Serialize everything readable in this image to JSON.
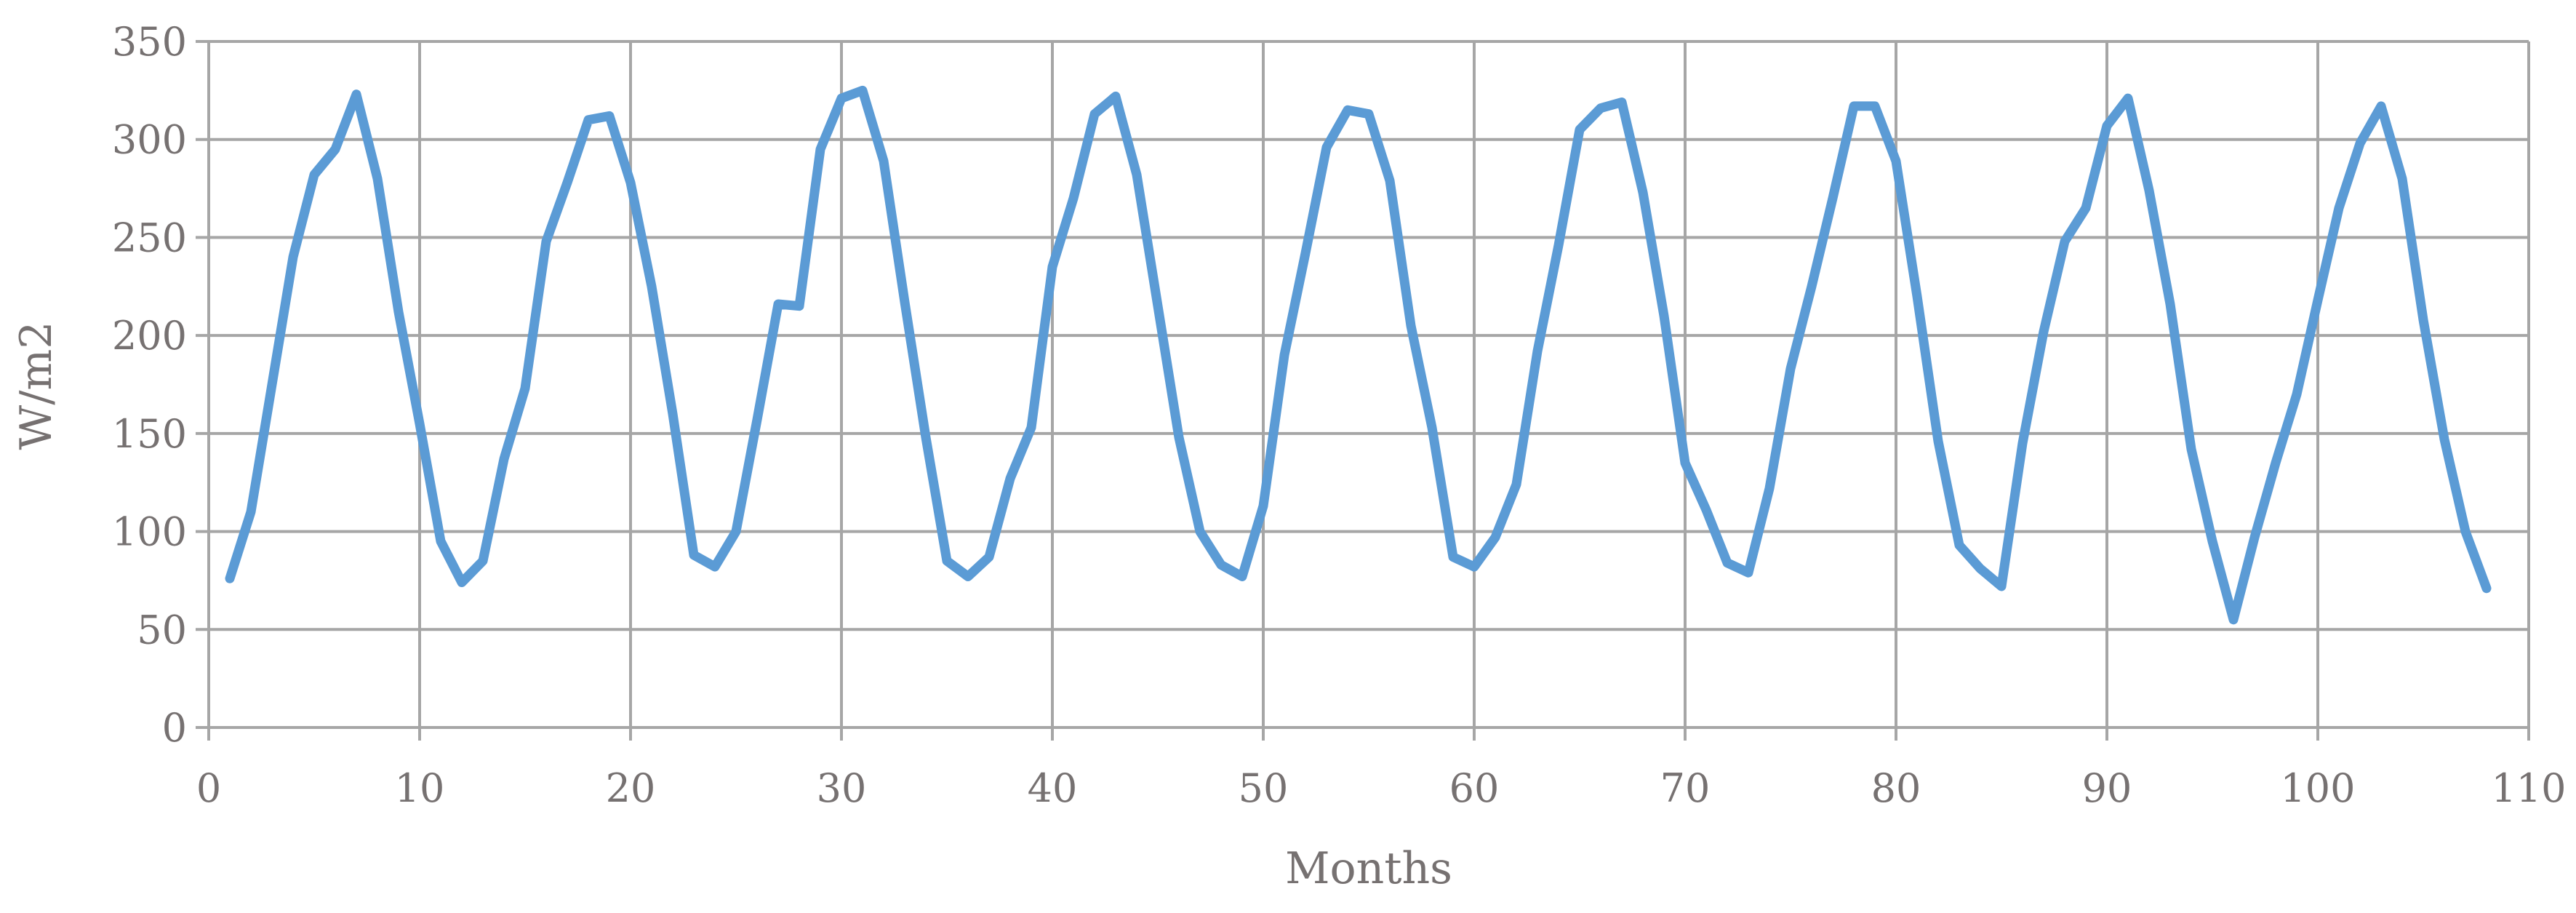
{
  "chart_data": {
    "type": "line",
    "title": "",
    "xlabel": "Months",
    "ylabel": "W/m2",
    "xlim": [
      0,
      110
    ],
    "ylim": [
      0,
      350
    ],
    "xticks": [
      0,
      10,
      20,
      30,
      40,
      50,
      60,
      70,
      80,
      90,
      100,
      110
    ],
    "yticks": [
      0,
      50,
      100,
      150,
      200,
      250,
      300,
      350
    ],
    "grid": true,
    "legend": "none",
    "series": [
      {
        "color": "#5b9bd5",
        "x": [
          1,
          2,
          3,
          4,
          5,
          6,
          7,
          8,
          9,
          10,
          11,
          12,
          13,
          14,
          15,
          16,
          17,
          18,
          19,
          20,
          21,
          22,
          23,
          24,
          25,
          26,
          27,
          28,
          29,
          30,
          31,
          32,
          33,
          34,
          35,
          36,
          37,
          38,
          39,
          40,
          41,
          42,
          43,
          44,
          45,
          46,
          47,
          48,
          49,
          50,
          51,
          52,
          53,
          54,
          55,
          56,
          57,
          58,
          59,
          60,
          61,
          62,
          63,
          64,
          65,
          66,
          67,
          68,
          69,
          70,
          71,
          72,
          73,
          74,
          75,
          76,
          77,
          78,
          79,
          80,
          81,
          82,
          83,
          84,
          85,
          86,
          87,
          88,
          89,
          90,
          91,
          92,
          93,
          94,
          95,
          96,
          97,
          98,
          99,
          100,
          101,
          102,
          103,
          104,
          105,
          106,
          107,
          108
        ],
        "y": [
          76,
          110,
          175,
          240,
          282,
          295,
          323,
          280,
          212,
          155,
          95,
          74,
          85,
          137,
          173,
          248,
          278,
          310,
          312,
          278,
          225,
          160,
          88,
          82,
          100,
          157,
          216,
          215,
          295,
          321,
          325,
          289,
          217,
          148,
          85,
          77,
          87,
          127,
          153,
          235,
          270,
          313,
          322,
          282,
          215,
          148,
          100,
          83,
          77,
          113,
          190,
          242,
          296,
          315,
          313,
          279,
          205,
          153,
          87,
          82,
          97,
          124,
          192,
          246,
          305,
          316,
          319,
          273,
          210,
          135,
          111,
          84,
          79,
          122,
          183,
          225,
          270,
          317,
          317,
          289,
          220,
          146,
          93,
          81,
          72,
          145,
          202,
          248,
          265,
          307,
          321,
          274,
          216,
          142,
          95,
          55,
          97,
          135,
          170,
          218,
          265,
          298,
          317,
          280,
          208,
          147,
          100,
          71
        ]
      }
    ]
  }
}
